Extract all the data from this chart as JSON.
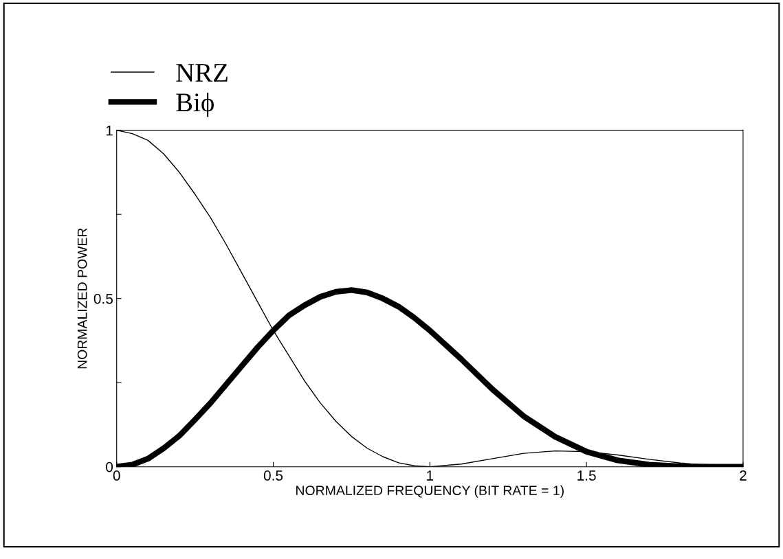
{
  "chart_data": {
    "type": "line",
    "xlabel": "NORMALIZED FREQUENCY (BIT RATE = 1)",
    "ylabel": "NORMALIZED POWER",
    "xlim": [
      0,
      2
    ],
    "ylim": [
      0,
      1
    ],
    "xticks": [
      0,
      0.5,
      1,
      1.5,
      2
    ],
    "yticks": [
      0,
      {
        "value": 0.25,
        "label": null
      },
      0.5,
      {
        "value": 0.75,
        "label": null
      },
      1
    ],
    "x": [
      0,
      0.05,
      0.1,
      0.15,
      0.2,
      0.25,
      0.3,
      0.35,
      0.4,
      0.45,
      0.5,
      0.55,
      0.6,
      0.65,
      0.7,
      0.75,
      0.8,
      0.85,
      0.9,
      0.95,
      1.0,
      1.1,
      1.2,
      1.3,
      1.4,
      1.5,
      1.6,
      1.7,
      1.8,
      1.9,
      2.0
    ],
    "series": [
      {
        "name": "NRZ",
        "color": "#000000",
        "values": [
          1,
          0.99,
          0.97,
          0.93,
          0.875,
          0.81,
          0.74,
          0.66,
          0.575,
          0.49,
          0.405,
          0.33,
          0.255,
          0.19,
          0.135,
          0.09,
          0.055,
          0.03,
          0.012,
          0.003,
          0,
          0.008,
          0.024,
          0.04,
          0.047,
          0.045,
          0.035,
          0.022,
          0.011,
          0.003,
          0
        ]
      },
      {
        "name": "Biϕ",
        "color": "#000000",
        "values": [
          0,
          0.006,
          0.024,
          0.055,
          0.092,
          0.14,
          0.19,
          0.245,
          0.3,
          0.355,
          0.405,
          0.45,
          0.48,
          0.505,
          0.52,
          0.525,
          0.518,
          0.5,
          0.476,
          0.443,
          0.405,
          0.32,
          0.23,
          0.15,
          0.089,
          0.045,
          0.019,
          0.006,
          0.001,
          0,
          0
        ]
      }
    ],
    "legend": "top left",
    "grid": false,
    "marker": "none",
    "line_style": "solid"
  }
}
